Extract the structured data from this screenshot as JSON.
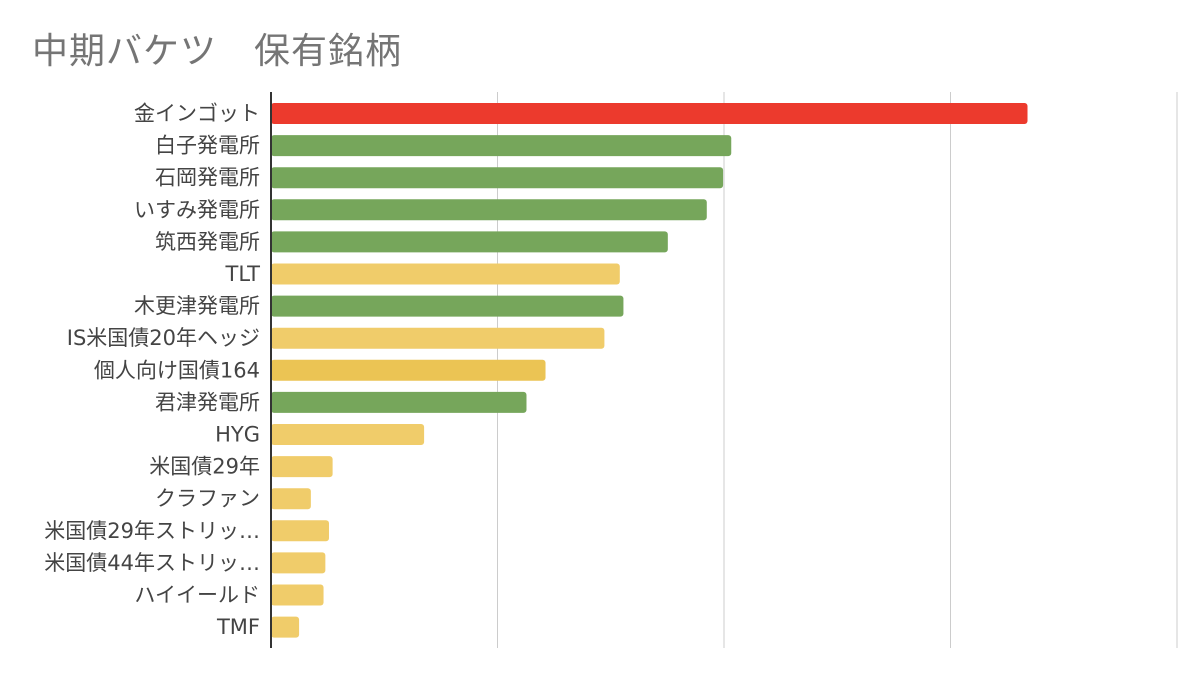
{
  "title": "中期バケツ　保有銘柄",
  "chart_data": {
    "type": "bar",
    "orientation": "horizontal",
    "title": "中期バケツ　保有銘柄",
    "xlabel": "",
    "ylabel": "",
    "xlim": [
      0,
      100
    ],
    "x_grid_ticks": [
      0,
      25,
      50,
      75,
      100
    ],
    "x_tick_labels_visible": false,
    "grid": true,
    "legend": "none",
    "categories": [
      "金インゴット",
      "白子発電所",
      "石岡発電所",
      "いすみ発電所",
      "筑西発電所",
      "TLT",
      "木更津発電所",
      "IS米国債20年ヘッジ",
      "個人向け国債164",
      "君津発電所",
      "HYG",
      "米国債29年",
      "クラファン",
      "米国債29年ストリッ…",
      "米国債44年ストリッ…",
      "ハイイールド",
      "TMF"
    ],
    "values": [
      83.5,
      50.8,
      49.9,
      48.1,
      43.8,
      38.5,
      38.9,
      36.8,
      30.3,
      28.2,
      16.9,
      6.8,
      4.4,
      6.4,
      6.0,
      5.8,
      3.1
    ],
    "colors": [
      "#ec3a2d",
      "#76a65b",
      "#76a65b",
      "#76a65b",
      "#76a65b",
      "#f0cc6a",
      "#76a65b",
      "#f0cc6a",
      "#ebc454",
      "#76a65b",
      "#f0cc6a",
      "#f0cc6a",
      "#f0cc6a",
      "#f0cc6a",
      "#f0cc6a",
      "#f0cc6a",
      "#f0cc6a"
    ]
  }
}
